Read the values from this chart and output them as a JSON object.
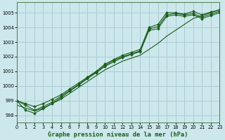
{
  "title": "Graphe pression niveau de la mer (hPa)",
  "bg_color": "#cce8ec",
  "grid_color": "#aaccd4",
  "line_color": "#1a5c1a",
  "marker_color": "#1a5c1a",
  "xlim": [
    0,
    23
  ],
  "ylim": [
    997.5,
    1005.7
  ],
  "yticks": [
    998,
    999,
    1000,
    1001,
    1002,
    1003,
    1004,
    1005
  ],
  "xticks": [
    0,
    1,
    2,
    3,
    4,
    5,
    6,
    7,
    8,
    9,
    10,
    11,
    12,
    13,
    14,
    15,
    16,
    17,
    18,
    19,
    20,
    21,
    22,
    23
  ],
  "series": [
    [
      999.0,
      998.8,
      998.6,
      998.8,
      999.1,
      999.4,
      999.8,
      1000.2,
      1000.6,
      1001.0,
      1001.5,
      1001.8,
      1002.1,
      1002.3,
      1002.5,
      1004.0,
      1004.2,
      1005.0,
      1005.0,
      1004.9,
      1005.1,
      1004.85,
      1005.05,
      1005.2
    ],
    [
      999.0,
      998.7,
      998.35,
      998.6,
      998.9,
      999.3,
      999.7,
      1000.1,
      1000.55,
      1000.95,
      1001.4,
      1001.75,
      1002.0,
      1002.2,
      1002.4,
      1003.9,
      1004.05,
      1004.85,
      1004.95,
      1004.85,
      1004.95,
      1004.7,
      1004.9,
      1005.1
    ],
    [
      999.0,
      998.35,
      998.15,
      998.45,
      998.8,
      999.2,
      999.65,
      1000.05,
      1000.5,
      1000.9,
      1001.35,
      1001.65,
      1001.95,
      1002.15,
      1002.35,
      1003.8,
      1003.9,
      1004.75,
      1004.85,
      1004.75,
      1004.85,
      1004.6,
      1004.8,
      1005.0
    ]
  ],
  "smooth_series": [
    [
      998.7,
      998.5,
      998.3,
      998.5,
      998.8,
      999.1,
      999.5,
      999.9,
      1000.3,
      1000.7,
      1001.1,
      1001.4,
      1001.7,
      1001.9,
      1002.1,
      1002.5,
      1002.9,
      1003.4,
      1003.8,
      1004.2,
      1004.6,
      1004.8,
      1005.0,
      1005.2
    ]
  ]
}
